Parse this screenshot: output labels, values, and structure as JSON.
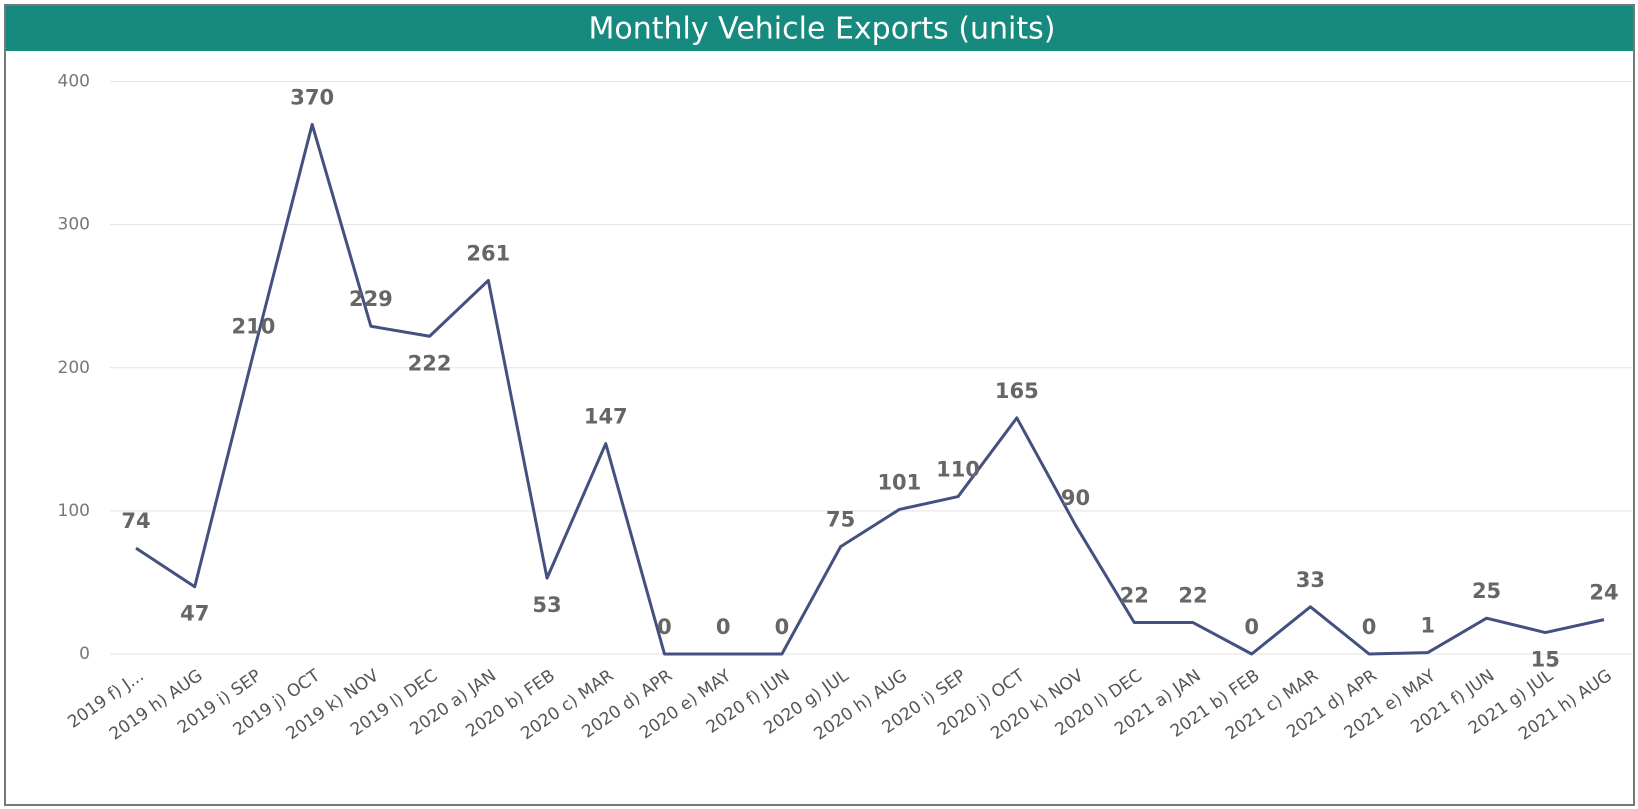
{
  "chart_data": {
    "type": "line",
    "title": "Monthly Vehicle Exports (units)",
    "categories": [
      "2019 f) J...",
      "2019 h) AUG",
      "2019 i) SEP",
      "2019 j) OCT",
      "2019 k) NOV",
      "2019 l) DEC",
      "2020 a) JAN",
      "2020 b) FEB",
      "2020 c) MAR",
      "2020 d) APR",
      "2020 e) MAY",
      "2020 f) JUN",
      "2020 g) JUL",
      "2020 h) AUG",
      "2020 i) SEP",
      "2020 j) OCT",
      "2020 k) NOV",
      "2020 l) DEC",
      "2021 a) JAN",
      "2021 b) FEB",
      "2021 c) MAR",
      "2021 d) APR",
      "2021 e) MAY",
      "2021 f) JUN",
      "2021 g) JUL",
      "2021 h) AUG"
    ],
    "series": [
      {
        "name": "Exports",
        "color": "#44507f",
        "values": [
          74,
          47,
          210,
          370,
          229,
          222,
          261,
          53,
          147,
          0,
          0,
          0,
          75,
          101,
          110,
          165,
          90,
          22,
          22,
          0,
          33,
          0,
          1,
          25,
          15,
          24
        ]
      }
    ],
    "ylim": [
      0,
      400
    ],
    "yticks": [
      0,
      100,
      200,
      300,
      400
    ],
    "grid": true
  }
}
